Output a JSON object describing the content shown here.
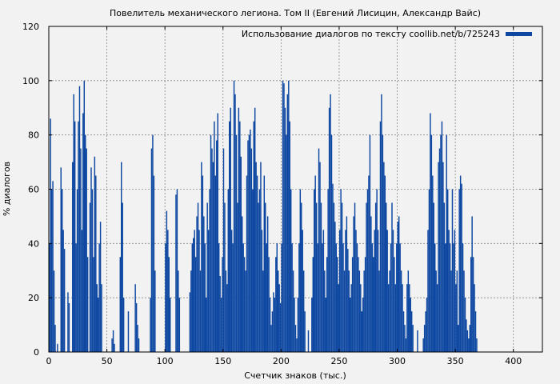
{
  "chart_data": {
    "type": "bar",
    "title": "Повелитель механического легиона. Том II (Евгений Лисицин, Александр Вайс)",
    "xlabel": "Счетчик знаков (тыс.)",
    "ylabel": "% диалогов",
    "xlim": [
      0,
      425
    ],
    "ylim": [
      0,
      120
    ],
    "xticks": [
      0,
      50,
      100,
      150,
      200,
      250,
      300,
      350,
      400
    ],
    "yticks": [
      0,
      20,
      40,
      60,
      80,
      100,
      120
    ],
    "grid": true,
    "legend_position": "top-right",
    "series": [
      {
        "name": "Использование диалогов по тексту coollib.net/b/725243",
        "color": "#0d47a1",
        "x_step": 1,
        "values": [
          40,
          86,
          60,
          63,
          30,
          10,
          0,
          3,
          0,
          0,
          68,
          60,
          45,
          38,
          0,
          0,
          22,
          18,
          0,
          0,
          70,
          95,
          85,
          40,
          60,
          85,
          98,
          75,
          45,
          88,
          100,
          80,
          75,
          35,
          0,
          55,
          68,
          60,
          35,
          72,
          65,
          25,
          20,
          40,
          48,
          25,
          0,
          0,
          0,
          0,
          0,
          0,
          0,
          0,
          5,
          8,
          3,
          0,
          0,
          0,
          0,
          35,
          70,
          55,
          20,
          0,
          0,
          0,
          15,
          0,
          0,
          0,
          0,
          0,
          25,
          18,
          10,
          5,
          0,
          0,
          0,
          0,
          0,
          0,
          0,
          0,
          0,
          20,
          75,
          80,
          65,
          30,
          0,
          0,
          0,
          0,
          0,
          0,
          0,
          0,
          40,
          52,
          45,
          35,
          20,
          0,
          0,
          0,
          0,
          58,
          60,
          30,
          20,
          0,
          0,
          0,
          0,
          0,
          0,
          0,
          0,
          22,
          30,
          40,
          42,
          45,
          35,
          50,
          55,
          45,
          30,
          70,
          65,
          50,
          40,
          20,
          55,
          45,
          60,
          80,
          75,
          70,
          85,
          65,
          78,
          88,
          40,
          28,
          20,
          35,
          75,
          55,
          30,
          25,
          60,
          85,
          90,
          45,
          40,
          100,
          95,
          80,
          55,
          90,
          85,
          72,
          50,
          40,
          35,
          30,
          65,
          78,
          80,
          82,
          75,
          60,
          85,
          90,
          70,
          65,
          55,
          60,
          70,
          45,
          30,
          65,
          55,
          40,
          50,
          35,
          20,
          10,
          15,
          22,
          20,
          35,
          40,
          30,
          25,
          18,
          40,
          100,
          99,
          90,
          80,
          95,
          100,
          85,
          60,
          40,
          30,
          20,
          10,
          5,
          20,
          40,
          60,
          55,
          45,
          30,
          15,
          0,
          0,
          8,
          0,
          0,
          20,
          35,
          60,
          65,
          55,
          40,
          75,
          70,
          55,
          40,
          45,
          30,
          20,
          35,
          60,
          90,
          95,
          80,
          62,
          55,
          48,
          40,
          35,
          25,
          45,
          60,
          55,
          40,
          30,
          45,
          50,
          38,
          30,
          20,
          25,
          35,
          50,
          55,
          45,
          40,
          35,
          30,
          25,
          15,
          20,
          30,
          35,
          55,
          60,
          65,
          80,
          50,
          40,
          35,
          45,
          55,
          60,
          45,
          30,
          85,
          95,
          80,
          70,
          65,
          55,
          45,
          25,
          30,
          40,
          55,
          45,
          35,
          25,
          40,
          48,
          50,
          40,
          30,
          25,
          15,
          10,
          5,
          25,
          30,
          25,
          20,
          15,
          10,
          0,
          0,
          0,
          8,
          0,
          0,
          0,
          0,
          5,
          10,
          15,
          20,
          45,
          60,
          88,
          80,
          65,
          55,
          40,
          30,
          25,
          70,
          75,
          80,
          85,
          70,
          55,
          40,
          80,
          60,
          45,
          40,
          30,
          60,
          40,
          45,
          25,
          30,
          10,
          60,
          65,
          62,
          40,
          30,
          20,
          12,
          8,
          5,
          10,
          35,
          50,
          35,
          25,
          15,
          5,
          0
        ],
        "x_note": ""
      }
    ]
  }
}
